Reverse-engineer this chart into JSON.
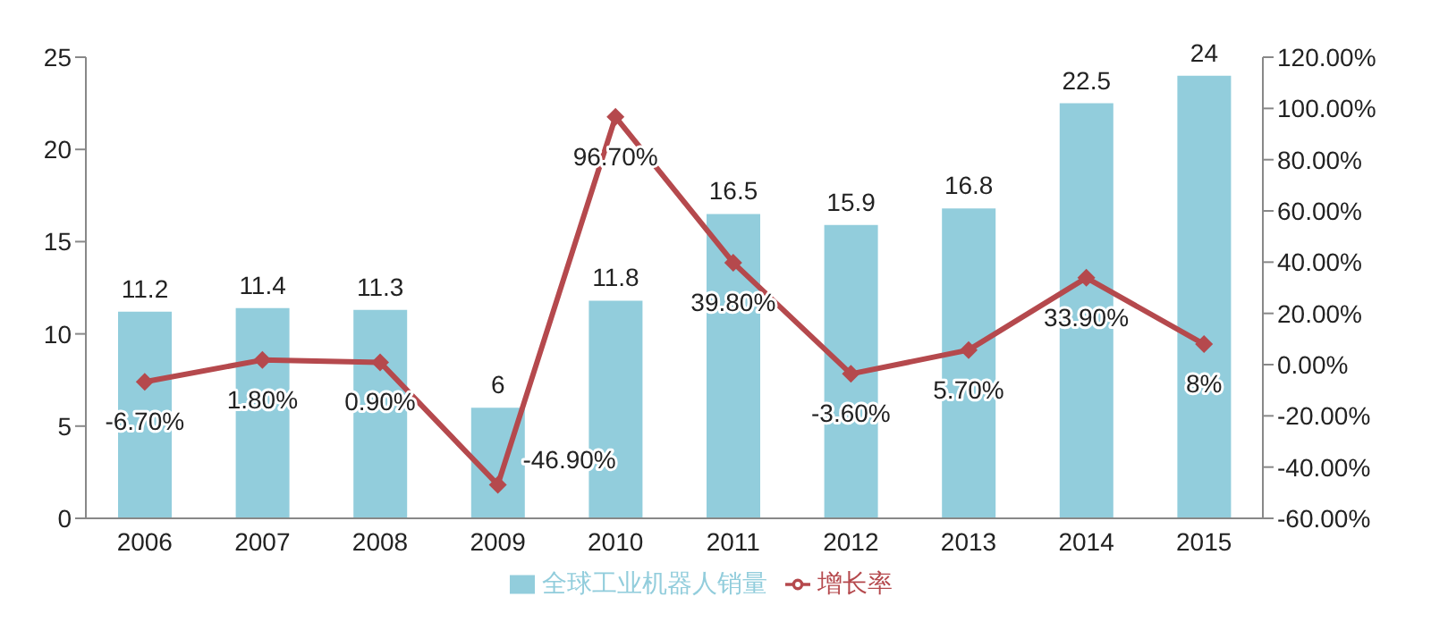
{
  "chart_data": {
    "type": "bar",
    "categories": [
      "2006",
      "2007",
      "2008",
      "2009",
      "2010",
      "2011",
      "2012",
      "2013",
      "2014",
      "2015"
    ],
    "series": [
      {
        "name": "全球工业机器人销量",
        "color": "#92cddc",
        "values": [
          11.2,
          11.4,
          11.3,
          6,
          11.8,
          16.5,
          15.9,
          16.8,
          22.5,
          24
        ]
      },
      {
        "name": "增长率",
        "type": "line",
        "axis": "y2",
        "color": "#b5494d",
        "values": [
          -6.7,
          1.8,
          0.9,
          -46.9,
          96.7,
          39.8,
          -3.6,
          5.7,
          33.9,
          8
        ],
        "value_labels": [
          "-6.70%",
          "1.80%",
          "0.90%",
          "-46.90%",
          "96.70%",
          "39.80%",
          "-3.60%",
          "5.70%",
          "33.90%",
          "8%"
        ]
      }
    ],
    "data_labels": true,
    "ylim": [
      0,
      25
    ],
    "yticks": [
      0,
      5,
      10,
      15,
      20,
      25
    ],
    "y2lim": [
      -60,
      120
    ],
    "y2ticks": [
      {
        "value": -60,
        "label": "-60.00%"
      },
      {
        "value": -40,
        "label": "-40.00%"
      },
      {
        "value": -20,
        "label": "-20.00%"
      },
      {
        "value": 0,
        "label": "0.00%"
      },
      {
        "value": 20,
        "label": "20.00%"
      },
      {
        "value": 40,
        "label": "40.00%"
      },
      {
        "value": 60,
        "label": "60.00%"
      },
      {
        "value": 80,
        "label": "80.00%"
      },
      {
        "value": 100,
        "label": "100.00%"
      },
      {
        "value": 120,
        "label": "120.00%"
      }
    ],
    "legend": "bottom",
    "marker": "diamond",
    "line_style": "solid",
    "grid": false
  }
}
